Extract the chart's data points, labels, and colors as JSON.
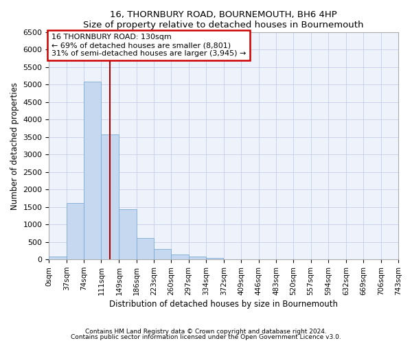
{
  "title": "16, THORNBURY ROAD, BOURNEMOUTH, BH6 4HP",
  "subtitle": "Size of property relative to detached houses in Bournemouth",
  "xlabel": "Distribution of detached houses by size in Bournemouth",
  "ylabel": "Number of detached properties",
  "property_size": 130,
  "bin_width": 37,
  "bin_starts": [
    0,
    37,
    74,
    111,
    149,
    186,
    223,
    260,
    297,
    334,
    372,
    409,
    446,
    483,
    520,
    557,
    594,
    632,
    669,
    706
  ],
  "bar_heights": [
    80,
    1620,
    5080,
    3580,
    1430,
    610,
    290,
    150,
    80,
    50,
    0,
    0,
    0,
    0,
    0,
    0,
    0,
    0,
    0,
    0
  ],
  "bar_color": "#c5d8f0",
  "bar_edge_color": "#7aaad4",
  "line_color": "#aa0000",
  "annotation_line1": "16 THORNBURY ROAD: 130sqm",
  "annotation_line2": "← 69% of detached houses are smaller (8,801)",
  "annotation_line3": "31% of semi-detached houses are larger (3,945) →",
  "annotation_box_color": "#cc0000",
  "ylim": [
    0,
    6500
  ],
  "yticks": [
    0,
    500,
    1000,
    1500,
    2000,
    2500,
    3000,
    3500,
    4000,
    4500,
    5000,
    5500,
    6000,
    6500
  ],
  "xtick_labels": [
    "0sqm",
    "37sqm",
    "74sqm",
    "111sqm",
    "149sqm",
    "186sqm",
    "223sqm",
    "260sqm",
    "297sqm",
    "334sqm",
    "372sqm",
    "409sqm",
    "446sqm",
    "483sqm",
    "520sqm",
    "557sqm",
    "594sqm",
    "632sqm",
    "669sqm",
    "706sqm",
    "743sqm"
  ],
  "xtick_values": [
    0,
    37,
    74,
    111,
    149,
    186,
    223,
    260,
    297,
    334,
    372,
    409,
    446,
    483,
    520,
    557,
    594,
    632,
    669,
    706,
    743
  ],
  "footnote1": "Contains HM Land Registry data © Crown copyright and database right 2024.",
  "footnote2": "Contains public sector information licensed under the Open Government Licence v3.0.",
  "background_color": "#eef2fb",
  "grid_color": "#c5cce8"
}
